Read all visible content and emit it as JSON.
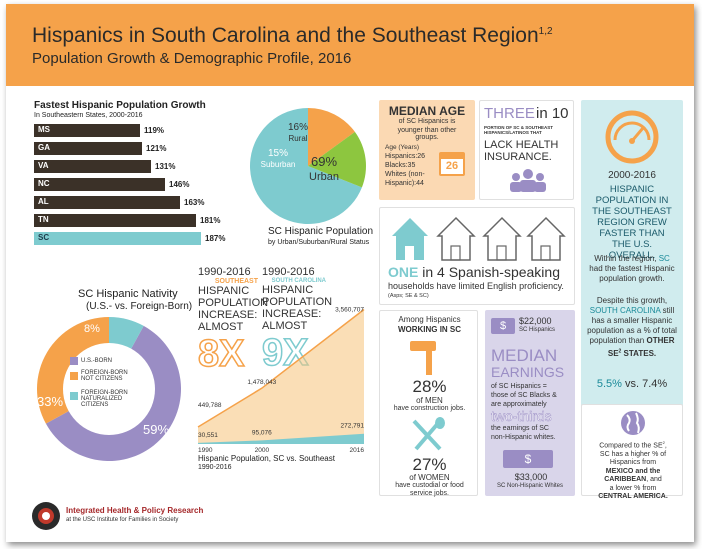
{
  "header": {
    "title": "Hispanics in South Carolina and the Southeast Region",
    "title_sup": "1,2",
    "subtitle": "Population Growth & Demographic Profile, 2016",
    "bg_color": "#f5a24a"
  },
  "growth": {
    "title": "Fastest Hispanic Population Growth",
    "subtitle": "In Southeastern States, 2000-2016",
    "states": [
      {
        "code": "MS",
        "label": "119%",
        "value": 119
      },
      {
        "code": "GA",
        "label": "121%",
        "value": 121
      },
      {
        "code": "VA",
        "label": "131%",
        "value": 131
      },
      {
        "code": "NC",
        "label": "146%",
        "value": 146
      },
      {
        "code": "AL",
        "label": "163%",
        "value": 163
      },
      {
        "code": "TN",
        "label": "181%",
        "value": 181
      },
      {
        "code": "SC",
        "label": "187%",
        "value": 187
      }
    ]
  },
  "urban_pie": {
    "title": "SC Hispanic Population",
    "subtitle": "by Urban/Suburban/Rural Status",
    "slices": [
      {
        "name": "Urban",
        "pct_label": "69%",
        "value": 69,
        "color": "#7ecbcf"
      },
      {
        "name": "Suburban",
        "pct_label": "15%",
        "value": 15,
        "color": "#f5a24a"
      },
      {
        "name": "Rural",
        "pct_label": "16%",
        "value": 16,
        "color": "#8dc63f"
      }
    ]
  },
  "nativity": {
    "title": "SC Hispanic Nativity",
    "subtitle": "(U.S.- vs. Foreign-Born)",
    "slices": [
      {
        "name": "U.S.-BORN",
        "pct_label": "59%",
        "value": 59,
        "color": "#9a8dc4"
      },
      {
        "name": "FOREIGN-BORN NOT CITIZENS",
        "pct_label": "33%",
        "value": 33,
        "color": "#f5a24a"
      },
      {
        "name": "FOREIGN-BORN NATURALIZED CITIZENS",
        "pct_label": "8%",
        "value": 8,
        "color": "#7ecbcf"
      }
    ]
  },
  "increase": {
    "col1_years": "1990-2016",
    "col1_region": "SOUTHEAST",
    "col1_l1": "HISPANIC",
    "col1_l2": "POPULATION",
    "col1_l3": "INCREASE:",
    "col1_l4": "ALMOST",
    "col1_big": "8X",
    "col2_years": "1990-2016",
    "col2_region": "SOUTH CAROLINA",
    "col2_l1": "HISPANIC",
    "col2_l2": "POPULATION",
    "col2_l3": "INCREASE:",
    "col2_l4": "ALMOST",
    "col2_big": "9X"
  },
  "chart_data": {
    "type": "area",
    "title": "Hispanic Population, SC vs. Southeast",
    "subtitle": "1990-2016",
    "x": [
      1990,
      2000,
      2016
    ],
    "x_labels": [
      "1990",
      "2000",
      "2016"
    ],
    "series": [
      {
        "values": [
          449788,
          1478043,
          3560707
        ],
        "labels": [
          "449,788",
          "1,478,043",
          "3,560,707"
        ],
        "color": "#f5c27a"
      },
      {
        "values": [
          30551,
          95076,
          272791
        ],
        "labels": [
          "30,551",
          "95,076",
          "272,791"
        ],
        "color": "#7ecbcf"
      }
    ],
    "ylim": [
      0,
      3600000
    ]
  },
  "median_age": {
    "title": "MEDIAN AGE",
    "line1": "of SC Hispanics is",
    "line2": "younger than other groups.",
    "label": "Age (Years)",
    "rows": [
      "Hispanics:26",
      "Blacks:35",
      "Whites (non-",
      "Hispanic):44"
    ],
    "calendar": "26"
  },
  "health": {
    "big": "THREE",
    "in10": "in 10",
    "small": "PORTION OF SC & SOUTHEAST HISPANICS/LATINOS THAT",
    "lack": "LACK HEALTH INSURANCE."
  },
  "growth_card": {
    "years": "2000-2016",
    "head": "HISPANIC POPULATION IN THE SOUTHEAST REGION GREW FASTER THAN THE U.S. OVERALL.",
    "p1_a": "Within the region,",
    "p1_sc": "SC",
    "p1_b": "had the fastest Hispanic population growth.",
    "p2_a": "Despite this growth,",
    "p2_sc": "SOUTH CAROLINA",
    "p2_b": "still has a smaller Hispanic population as a % of total population than",
    "p2_c": "OTHER SE",
    "p2_sup": "2",
    "p2_d": "STATES.",
    "cmp_a": "5.5%",
    "cmp_vs": "vs.",
    "cmp_b": "7.4%"
  },
  "english": {
    "one": "ONE",
    "rest": "in 4 Spanish-speaking",
    "line2": "households have limited English proficiency.",
    "note": "(Asps; SE & SC)"
  },
  "work": {
    "head1": "Among Hispanics",
    "head2": "WORKING IN SC",
    "men_pct": "28%",
    "men_l1": "of MEN",
    "men_l2": "have construction jobs.",
    "women_pct": "27%",
    "women_l1": "of WOMEN",
    "women_l2": "have custodial or food",
    "women_l3": "service jobs."
  },
  "earnings": {
    "top_amount": "$22,000",
    "top_label": "SC Hispanics",
    "median": "MEDIAN",
    "earnings": "EARNINGS",
    "line1": "of SC Hispanics =",
    "line2": "those of SC Blacks &",
    "line3": "are approximately",
    "two_thirds": "two-thirds",
    "line4": "the earnings of SC",
    "line5": "non-Hispanic whites.",
    "bot_amount": "$33,000",
    "bot_label": "SC Non-Hispanic Whites",
    "bill_icon": "$"
  },
  "origin": {
    "l1": "Compared to the SE",
    "sup": "2",
    "l1b": ",",
    "l2": "SC has a higher % of",
    "l3": "Hispanics from",
    "mex": "MEXICO and the",
    "car": "CARIBBEAN",
    "l4": ", and",
    "l5": "a lower % from",
    "cam": "CENTRAL AMERICA."
  },
  "footer": {
    "org": "Integrated Health & Policy Research",
    "sub": "at the USC Institute for Families in Society"
  }
}
